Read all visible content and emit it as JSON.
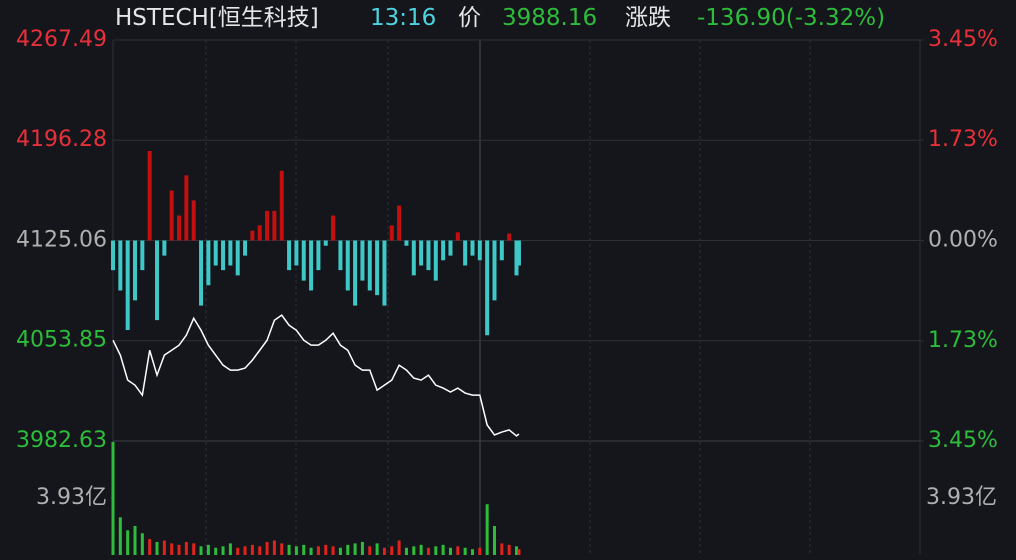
{
  "header": {
    "symbol": "HSTECH[恒生科技]",
    "time": "13:16",
    "price_label": "价",
    "price": "3988.16",
    "change_label": "涨跌",
    "change": "-136.90(-3.32%)"
  },
  "chart_data": [
    {
      "type": "line",
      "x": [
        0,
        3,
        6,
        9,
        12,
        15,
        18,
        21,
        24,
        27,
        30,
        33,
        36,
        39,
        42,
        45,
        48,
        51,
        54,
        57,
        60,
        63,
        66,
        69,
        72,
        75,
        78,
        81,
        84,
        87,
        90,
        93,
        96,
        99,
        102,
        105,
        108,
        111,
        114,
        117,
        120,
        123,
        126,
        129,
        132,
        135,
        138,
        141,
        144,
        147,
        150,
        153,
        156,
        159,
        162,
        165,
        166
      ],
      "xlim": [
        0,
        330
      ],
      "ylim": [
        3982.63,
        4267.49
      ],
      "yticks": [
        3982.63,
        4053.85,
        4125.06,
        4196.28,
        4267.49
      ],
      "y2lim": [
        -3.45,
        3.45
      ],
      "y2ticks": [
        {
          "value": -3.45,
          "label": "3.45%"
        },
        {
          "value": -1.73,
          "label": "1.73%"
        },
        {
          "value": 0,
          "label": "0.00%"
        },
        {
          "value": 1.73,
          "label": "1.73%"
        },
        {
          "value": 3.45,
          "label": "3.45%"
        }
      ],
      "up_color": "#c40f0f",
      "down_color": "#3ec8c8",
      "grid": true,
      "series": [
        {
          "color": "#ffffff",
          "values": [
            4054.2,
            4043.6,
            4025.9,
            4022.3,
            4015.2,
            4047.1,
            4029.4,
            4043.6,
            4047.1,
            4050.7,
            4057.8,
            4069.8,
            4061.3,
            4050.7,
            4043.6,
            4036.5,
            4033.0,
            4033.0,
            4034.4,
            4040.1,
            4047.1,
            4054.2,
            4068.4,
            4072.0,
            4064.9,
            4061.3,
            4054.2,
            4050.7,
            4050.7,
            4054.2,
            4059.2,
            4050.7,
            4047.1,
            4036.5,
            4033.0,
            4033.0,
            4018.8,
            4022.3,
            4025.9,
            4036.5,
            4033.0,
            4027.3,
            4025.9,
            4029.4,
            4022.3,
            4020.2,
            4017.4,
            4020.2,
            4016.7,
            4015.2,
            4015.2,
            3994.0,
            3986.9,
            3989.0,
            3990.5,
            3986.2,
            3987.6
          ]
        },
        {
          "type": "bar",
          "axis": "y2",
          "values": [
            -0.51,
            -0.86,
            -1.54,
            -1.03,
            -0.51,
            1.54,
            -1.37,
            -0.26,
            0.86,
            0.43,
            1.12,
            0.69,
            -1.12,
            -0.77,
            -0.43,
            -0.51,
            -0.43,
            -0.6,
            -0.26,
            0.17,
            0.26,
            0.51,
            0.51,
            1.2,
            -0.51,
            -0.43,
            -0.69,
            -0.86,
            -0.51,
            -0.09,
            0.43,
            -0.51,
            -0.86,
            -1.12,
            -0.69,
            -0.86,
            -0.94,
            -1.12,
            0.26,
            0.6,
            -0.09,
            -0.6,
            -0.43,
            -0.51,
            -0.69,
            -0.34,
            -0.26,
            0.14,
            -0.43,
            -0.26,
            -0.34,
            -1.63,
            -1.03,
            -0.34,
            0.12,
            -0.6,
            -0.43
          ]
        }
      ]
    },
    {
      "type": "bar",
      "ylim": [
        0,
        7.86
      ],
      "yticks": [
        {
          "value": 3.93,
          "label": "3.93亿"
        }
      ],
      "up_color": "#e0231b",
      "down_color": "#2dbd3a",
      "values": [
        7.8,
        2.6,
        1.7,
        2.0,
        1.5,
        1.1,
        0.9,
        1.0,
        0.8,
        0.7,
        0.9,
        0.8,
        0.6,
        0.7,
        0.5,
        0.6,
        0.8,
        0.5,
        0.6,
        0.7,
        0.6,
        0.9,
        1.0,
        0.8,
        0.7,
        0.6,
        0.7,
        0.5,
        0.6,
        0.7,
        0.6,
        0.5,
        0.7,
        0.8,
        0.9,
        0.6,
        0.8,
        0.5,
        0.6,
        1.0,
        0.5,
        0.6,
        0.7,
        0.5,
        0.6,
        0.7,
        0.5,
        0.6,
        0.5,
        0.4,
        0.5,
        3.5,
        2.0,
        0.8,
        0.7,
        0.6,
        0.4
      ]
    }
  ]
}
